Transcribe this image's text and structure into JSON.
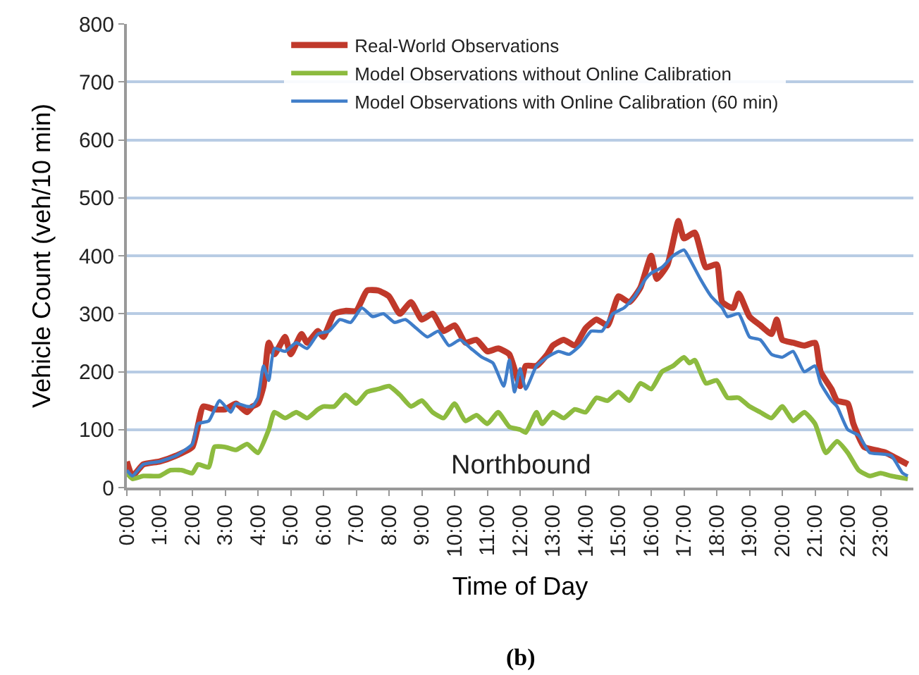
{
  "chart_data": {
    "type": "line",
    "xlabel": "Time of Day",
    "ylabel": "Vehicle Count (veh/10 min)",
    "annotations": [
      "Northbound",
      "(b)"
    ],
    "xlim": [
      0,
      24
    ],
    "ylim": [
      0,
      800
    ],
    "xticks": [
      {
        "value": 0,
        "label": "0:00"
      },
      {
        "value": 1,
        "label": "1:00"
      },
      {
        "value": 2,
        "label": "2:00"
      },
      {
        "value": 3,
        "label": "3:00"
      },
      {
        "value": 4,
        "label": "4:00"
      },
      {
        "value": 5,
        "label": "5:00"
      },
      {
        "value": 6,
        "label": "6:00"
      },
      {
        "value": 7,
        "label": "7:00"
      },
      {
        "value": 8,
        "label": "8:00"
      },
      {
        "value": 9,
        "label": "9:00"
      },
      {
        "value": 10,
        "label": "10:00"
      },
      {
        "value": 11,
        "label": "11:00"
      },
      {
        "value": 12,
        "label": "12:00"
      },
      {
        "value": 13,
        "label": "13:00"
      },
      {
        "value": 14,
        "label": "14:00"
      },
      {
        "value": 15,
        "label": "15:00"
      },
      {
        "value": 16,
        "label": "16:00"
      },
      {
        "value": 17,
        "label": "17:00"
      },
      {
        "value": 18,
        "label": "18:00"
      },
      {
        "value": 19,
        "label": "19:00"
      },
      {
        "value": 20,
        "label": "20:00"
      },
      {
        "value": 21,
        "label": "21:00"
      },
      {
        "value": 22,
        "label": "22:00"
      },
      {
        "value": 23,
        "label": "23:00"
      }
    ],
    "yticks": [
      0,
      100,
      200,
      300,
      400,
      500,
      600,
      700,
      800
    ],
    "grid": "y",
    "legend": "top",
    "marker": "none",
    "line_style": "solid",
    "series": [
      {
        "name": "Real-World Observations",
        "color": "#c0392b",
        "x": [
          0,
          0.17,
          0.5,
          1,
          1.5,
          2,
          2.33,
          2.67,
          3,
          3.33,
          3.67,
          3.83,
          4,
          4.17,
          4.33,
          4.5,
          4.83,
          5,
          5.33,
          5.5,
          5.83,
          6,
          6.33,
          6.67,
          7,
          7.33,
          7.67,
          8,
          8.33,
          8.67,
          9,
          9.33,
          9.67,
          10,
          10.33,
          10.67,
          11,
          11.33,
          11.67,
          12,
          12.17,
          12.5,
          12.83,
          13,
          13.33,
          13.67,
          14,
          14.33,
          14.67,
          15,
          15.33,
          15.67,
          16,
          16.17,
          16.5,
          16.83,
          17,
          17.33,
          17.67,
          18,
          18.17,
          18.5,
          18.67,
          19,
          19.33,
          19.67,
          19.83,
          20,
          20.33,
          20.67,
          21,
          21.17,
          21.5,
          21.67,
          22,
          22.17,
          22.5,
          22.83,
          23.17,
          23.5,
          23.83
        ],
        "values": [
          45,
          20,
          40,
          45,
          55,
          70,
          140,
          135,
          135,
          145,
          130,
          140,
          145,
          175,
          250,
          230,
          260,
          230,
          265,
          250,
          270,
          260,
          300,
          305,
          305,
          340,
          340,
          330,
          300,
          320,
          290,
          300,
          270,
          280,
          250,
          255,
          235,
          240,
          230,
          175,
          210,
          210,
          230,
          245,
          255,
          245,
          275,
          290,
          280,
          330,
          320,
          345,
          400,
          360,
          385,
          460,
          430,
          440,
          380,
          385,
          320,
          310,
          335,
          295,
          280,
          265,
          290,
          255,
          250,
          245,
          250,
          200,
          170,
          150,
          145,
          110,
          70,
          65,
          60,
          50,
          40
        ]
      },
      {
        "name": "Model Observations without Online Calibration",
        "color": "#8dbb3f",
        "x": [
          0,
          0.17,
          0.5,
          1,
          1.33,
          1.67,
          2,
          2.17,
          2.5,
          2.67,
          3,
          3.33,
          3.67,
          4,
          4.33,
          4.5,
          4.83,
          5.17,
          5.5,
          5.83,
          6,
          6.33,
          6.67,
          7,
          7.33,
          7.67,
          8,
          8.33,
          8.67,
          9,
          9.33,
          9.67,
          10,
          10.33,
          10.67,
          11,
          11.33,
          11.67,
          12,
          12.17,
          12.5,
          12.67,
          13,
          13.33,
          13.67,
          14,
          14.33,
          14.67,
          15,
          15.33,
          15.67,
          16,
          16.33,
          16.67,
          17,
          17.17,
          17.33,
          17.67,
          18,
          18.33,
          18.67,
          19,
          19.33,
          19.67,
          20,
          20.33,
          20.67,
          21,
          21.33,
          21.67,
          22,
          22.33,
          22.67,
          23,
          23.33,
          23.83
        ],
        "values": [
          25,
          15,
          20,
          20,
          30,
          30,
          25,
          40,
          35,
          70,
          70,
          65,
          75,
          60,
          100,
          130,
          120,
          130,
          120,
          135,
          140,
          140,
          160,
          145,
          165,
          170,
          175,
          160,
          140,
          150,
          130,
          120,
          145,
          115,
          125,
          110,
          130,
          105,
          100,
          95,
          130,
          110,
          130,
          120,
          135,
          130,
          155,
          150,
          165,
          150,
          180,
          170,
          200,
          210,
          225,
          215,
          220,
          180,
          185,
          155,
          155,
          140,
          130,
          120,
          140,
          115,
          130,
          110,
          60,
          80,
          60,
          30,
          20,
          25,
          20,
          15
        ]
      },
      {
        "name": "Model Observations with Online Calibration (60 min)",
        "color": "#3f7dc9",
        "x": [
          0,
          0.17,
          0.5,
          1,
          1.5,
          2,
          2.17,
          2.5,
          2.83,
          3.17,
          3.33,
          3.67,
          3.83,
          4,
          4.17,
          4.33,
          4.5,
          4.83,
          5.17,
          5.5,
          5.83,
          6.17,
          6.5,
          6.83,
          7.17,
          7.5,
          7.83,
          8.17,
          8.5,
          8.83,
          9.17,
          9.5,
          9.83,
          10.17,
          10.5,
          10.83,
          11.17,
          11.5,
          11.67,
          11.83,
          12,
          12.17,
          12.5,
          12.83,
          13.17,
          13.5,
          13.83,
          14.17,
          14.5,
          14.83,
          15.17,
          15.5,
          15.83,
          16,
          16.33,
          16.67,
          17,
          17.17,
          17.5,
          17.83,
          18.17,
          18.33,
          18.67,
          19,
          19.33,
          19.67,
          20,
          20.33,
          20.67,
          21,
          21.17,
          21.5,
          21.67,
          22,
          22.33,
          22.67,
          23,
          23.33,
          23.67,
          23.83
        ],
        "values": [
          30,
          20,
          40,
          45,
          55,
          75,
          110,
          115,
          150,
          130,
          145,
          140,
          140,
          155,
          210,
          185,
          240,
          235,
          250,
          240,
          265,
          270,
          290,
          285,
          310,
          295,
          300,
          285,
          290,
          275,
          260,
          270,
          245,
          255,
          240,
          225,
          215,
          175,
          220,
          165,
          205,
          170,
          210,
          225,
          235,
          230,
          245,
          270,
          270,
          300,
          310,
          330,
          360,
          370,
          380,
          400,
          410,
          395,
          360,
          330,
          310,
          295,
          300,
          260,
          255,
          230,
          225,
          235,
          200,
          210,
          180,
          150,
          140,
          100,
          90,
          60,
          58,
          55,
          25,
          20
        ]
      }
    ]
  }
}
